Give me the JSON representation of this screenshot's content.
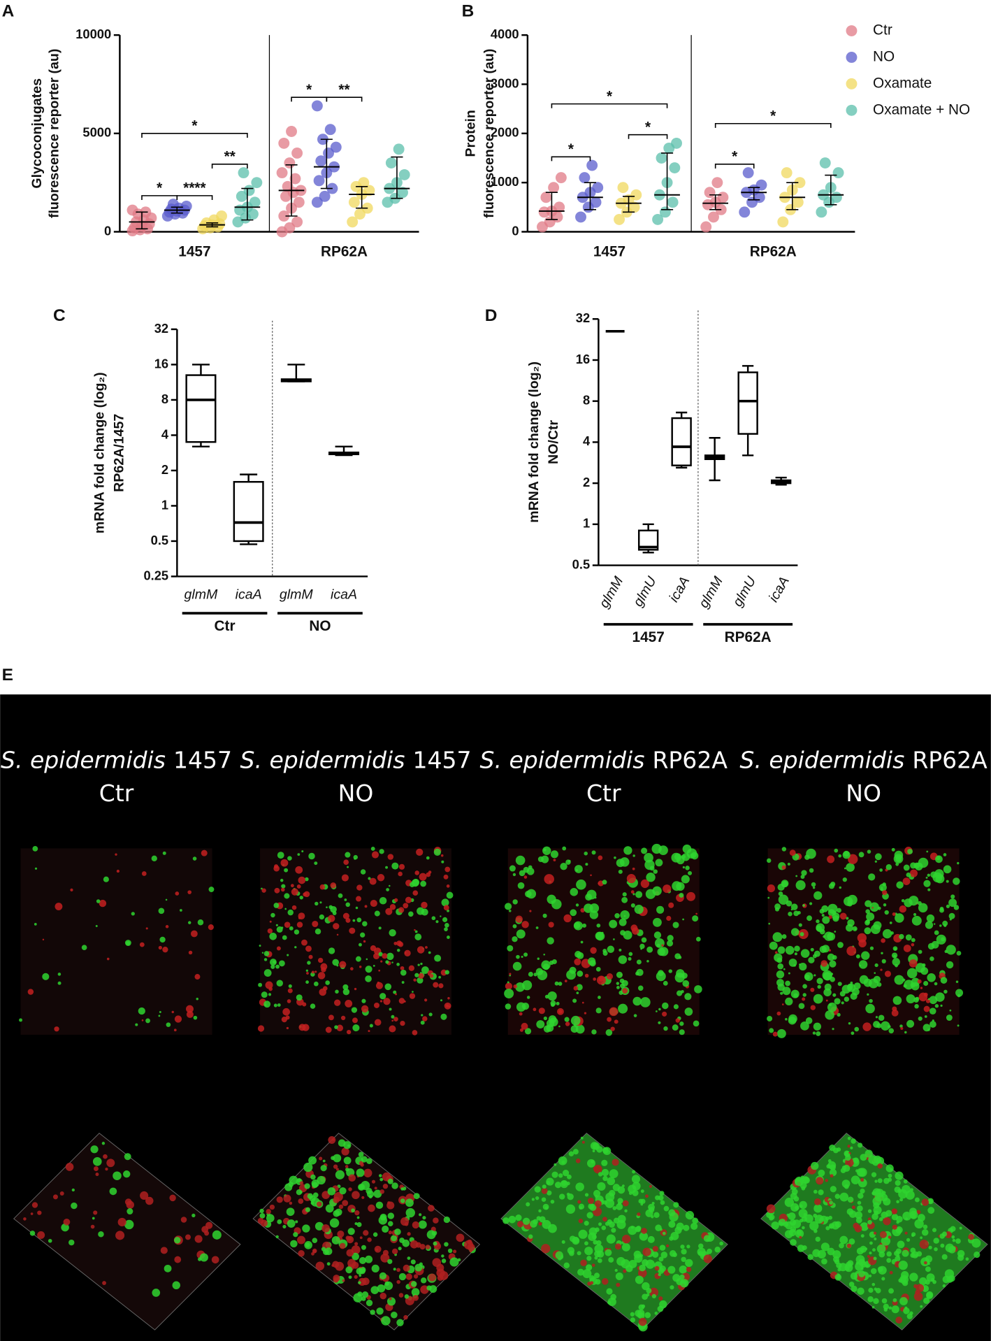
{
  "chart_data": [
    {
      "type": "dot",
      "panel": "A",
      "ylabel": [
        "Glycoconjugates",
        "fluorescence reporter (au)"
      ],
      "categories": [
        "1457",
        "RP62A"
      ],
      "ylim": [
        0,
        10000
      ],
      "yticks": [
        0,
        5000,
        10000
      ],
      "series": [
        {
          "name": "Ctr",
          "color": "#e07a85",
          "points": [
            [
              50,
              100,
              150,
              200,
              300,
              400,
              500,
              600,
              700,
              900,
              1000,
              1100
            ],
            [
              0,
              200,
              500,
              800,
              1200,
              1500,
              1800,
              2000,
              2100,
              2300,
              2700,
              3000,
              3500,
              4000,
              4500,
              5100
            ]
          ],
          "median": [
            500,
            2100
          ],
          "lower": [
            150,
            800
          ],
          "upper": [
            1000,
            3400
          ]
        },
        {
          "name": "NO",
          "color": "#5a5ccc",
          "points": [
            [
              800,
              900,
              950,
              1000,
              1050,
              1100,
              1150,
              1200,
              1300,
              1400
            ],
            [
              1500,
              1800,
              2200,
              2600,
              3000,
              3300,
              3600,
              4000,
              4300,
              4700,
              5200,
              6400
            ]
          ],
          "median": [
            1100,
            3300
          ],
          "lower": [
            950,
            2200
          ],
          "upper": [
            1250,
            4700
          ]
        },
        {
          "name": "Oxamate",
          "color": "#f0d85e",
          "points": [
            [
              150,
              200,
              250,
              300,
              350,
              400,
              450,
              600,
              800
            ],
            [
              500,
              900,
              1200,
              1500,
              1900,
              2100,
              2300,
              2500
            ]
          ],
          "median": [
            350,
            1900
          ],
          "lower": [
            250,
            1200
          ],
          "upper": [
            450,
            2300
          ]
        },
        {
          "name": "Oxamate + NO",
          "color": "#5bbfab",
          "points": [
            [
              500,
              700,
              900,
              1100,
              1250,
              1500,
              1800,
              2100,
              2500,
              3000
            ],
            [
              1500,
              1700,
              2000,
              2200,
              2500,
              2900,
              3500,
              4200
            ]
          ],
          "median": [
            1250,
            2200
          ],
          "lower": [
            600,
            1700
          ],
          "upper": [
            2200,
            3800
          ]
        }
      ],
      "annotations": [
        {
          "text": "*",
          "category": 0,
          "from": 0,
          "to": 1
        },
        {
          "text": "****",
          "category": 0,
          "from": 1,
          "to": 2
        },
        {
          "text": "**",
          "category": 0,
          "from": 2,
          "to": 3
        },
        {
          "text": "*",
          "category": 0,
          "from": 0,
          "to": 3
        },
        {
          "text": "*",
          "category": 1,
          "from": 0,
          "to": 1
        },
        {
          "text": "**",
          "category": 1,
          "from": 1,
          "to": 2
        }
      ]
    },
    {
      "type": "dot",
      "panel": "B",
      "ylabel": [
        "Protein",
        "fluorescence reporter (au)"
      ],
      "categories": [
        "1457",
        "RP62A"
      ],
      "ylim": [
        0,
        4000
      ],
      "yticks": [
        0,
        1000,
        2000,
        3000,
        4000
      ],
      "series": [
        {
          "color": "#e07a85",
          "points": [
            [
              100,
              200,
              300,
              400,
              420,
              500,
              700,
              900,
              1100
            ],
            [
              100,
              300,
              450,
              550,
              600,
              700,
              800,
              1000
            ]
          ],
          "median": [
            420,
            580
          ],
          "lower": [
            250,
            450
          ],
          "upper": [
            800,
            750
          ]
        },
        {
          "color": "#5a5ccc",
          "points": [
            [
              300,
              500,
              600,
              700,
              800,
              900,
              1100,
              1350
            ],
            [
              400,
              600,
              700,
              800,
              850,
              950,
              1200
            ]
          ],
          "median": [
            700,
            800
          ],
          "lower": [
            450,
            650
          ],
          "upper": [
            1000,
            900
          ]
        },
        {
          "color": "#f0d85e",
          "points": [
            [
              250,
              400,
              500,
              580,
              650,
              750,
              900
            ],
            [
              200,
              450,
              600,
              700,
              850,
              1000,
              1200
            ]
          ],
          "median": [
            580,
            700
          ],
          "lower": [
            400,
            450
          ],
          "upper": [
            720,
            1000
          ]
        },
        {
          "color": "#5bbfab",
          "points": [
            [
              250,
              400,
              600,
              750,
              1000,
              1300,
              1500,
              1700,
              1800
            ],
            [
              400,
              600,
              700,
              750,
              900,
              1200,
              1400
            ]
          ],
          "median": [
            750,
            750
          ],
          "lower": [
            450,
            550
          ],
          "upper": [
            1600,
            1150
          ]
        }
      ],
      "annotations": [
        {
          "text": "*",
          "category": 0,
          "from": 0,
          "to": 1
        },
        {
          "text": "*",
          "category": 0,
          "from": 2,
          "to": 3
        },
        {
          "text": "*",
          "category": 0,
          "from": 0,
          "to": 3
        },
        {
          "text": "*",
          "category": 1,
          "from": 0,
          "to": 1
        },
        {
          "text": "*",
          "category": 1,
          "from": 0,
          "to": 3
        }
      ]
    },
    {
      "type": "box",
      "panel": "C",
      "ylabel": [
        "mRNA fold change (log₂)",
        "RP62A/1457"
      ],
      "log_y": true,
      "ylim": [
        0.25,
        32
      ],
      "yticks": [
        0.25,
        0.5,
        1,
        2,
        4,
        8,
        16,
        32
      ],
      "groups": [
        {
          "name": "Ctr",
          "categories": [
            "glmM",
            "icaA"
          ],
          "boxes": [
            {
              "min": 3.2,
              "q1": 3.5,
              "median": 8,
              "q3": 13,
              "max": 16
            },
            {
              "min": 0.47,
              "q1": 0.5,
              "median": 0.72,
              "q3": 1.6,
              "max": 1.85
            }
          ]
        },
        {
          "name": "NO",
          "categories": [
            "glmM",
            "icaA"
          ],
          "boxes": [
            {
              "min": 11.5,
              "q1": 11.5,
              "median": 11.8,
              "q3": 12,
              "max": 16
            },
            {
              "min": 2.7,
              "q1": 2.75,
              "median": 2.8,
              "q3": 2.85,
              "max": 3.2
            }
          ]
        }
      ]
    },
    {
      "type": "box",
      "panel": "D",
      "ylabel": [
        "mRNA fold change (log₂)",
        "NO/Ctr"
      ],
      "log_y": true,
      "ylim": [
        0.5,
        32
      ],
      "yticks": [
        0.5,
        1,
        2,
        4,
        8,
        16,
        32
      ],
      "groups": [
        {
          "name": "1457",
          "categories": [
            "glmM",
            "glmU",
            "icaA"
          ],
          "boxes": [
            {
              "min": 26,
              "q1": 26,
              "median": 26,
              "q3": 26,
              "max": 26
            },
            {
              "min": 0.62,
              "q1": 0.65,
              "median": 0.68,
              "q3": 0.9,
              "max": 1.0
            },
            {
              "min": 2.6,
              "q1": 2.7,
              "median": 3.7,
              "q3": 6,
              "max": 6.6
            }
          ]
        },
        {
          "name": "RP62A",
          "categories": [
            "glmM",
            "glmU",
            "icaA"
          ],
          "boxes": [
            {
              "min": 2.1,
              "q1": 3,
              "median": 3.1,
              "q3": 3.2,
              "max": 4.3
            },
            {
              "min": 3.2,
              "q1": 4.6,
              "median": 8,
              "q3": 13,
              "max": 14.5
            },
            {
              "min": 1.95,
              "q1": 2,
              "median": 2.05,
              "q3": 2.1,
              "max": 2.2
            }
          ]
        }
      ]
    }
  ],
  "panel_e": {
    "label": "E",
    "columns": [
      {
        "species": "S. epidermidis",
        "strain": "1457",
        "condition": "Ctr"
      },
      {
        "species": "S. epidermidis",
        "strain": "1457",
        "condition": "NO"
      },
      {
        "species": "S. epidermidis",
        "strain": "RP62A",
        "condition": "Ctr"
      },
      {
        "species": "S. epidermidis",
        "strain": "RP62A",
        "condition": "NO"
      }
    ]
  }
}
